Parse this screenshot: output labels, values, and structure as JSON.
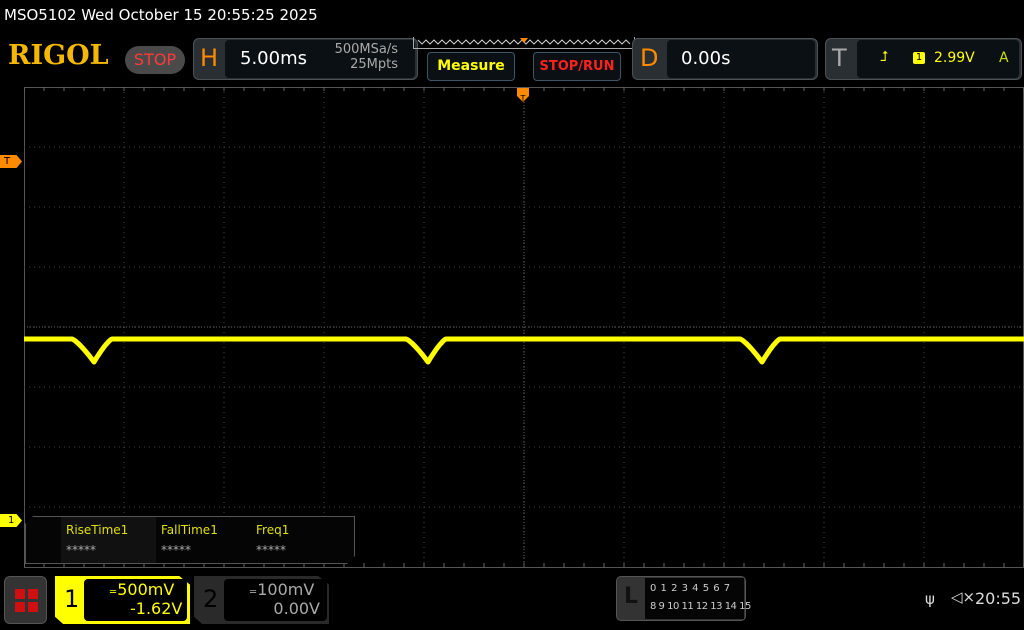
{
  "title_bar": "MSO5102  Wed October 15 20:55:25 2025",
  "logo": "RIGOL",
  "run_state": "STOP",
  "horizontal": {
    "letter": "H",
    "timebase": "5.00ms",
    "sample_rate": "500MSa/s",
    "memory_depth": "25Mpts"
  },
  "buttons": {
    "measure": "Measure",
    "stop_run": "STOP/RUN"
  },
  "delay": {
    "letter": "D",
    "value": "0.00s"
  },
  "trigger": {
    "letter": "T",
    "edge_icon": "rising-edge-icon",
    "source_channel": "1",
    "level": "2.99V",
    "mode": "A",
    "marker_label": "T"
  },
  "channel1_marker": "1",
  "measurements": [
    {
      "name": "RiseTime1",
      "value": "*****"
    },
    {
      "name": "FallTime1",
      "value": "*****"
    },
    {
      "name": "Freq1",
      "value": "*****"
    }
  ],
  "channels": [
    {
      "number": "1",
      "coupling_icon": "dc-coupling-icon",
      "scale": "500mV",
      "offset": "-1.62V",
      "active": true,
      "color": "#ffff00"
    },
    {
      "number": "2",
      "coupling_icon": "dc-coupling-icon",
      "scale": "100mV",
      "offset": "0.00V",
      "active": false,
      "color": "#aaaaaa"
    }
  ],
  "logic": {
    "letter": "L",
    "row1": "0 1 2 3  4 5 6 7",
    "row2": "8 9 10 11 12 13 14 15"
  },
  "status": {
    "usb_icon": "usb-icon",
    "sound_icon": "speaker-muted-icon",
    "time": "20:55"
  },
  "waveform": {
    "color": "#ffff00",
    "dip_positions_ms": [
      3.5,
      20.2,
      36.9
    ]
  },
  "colors": {
    "accent_orange": "#ff8a00",
    "stop_red": "#ff3a3a",
    "grid": "#555555"
  }
}
